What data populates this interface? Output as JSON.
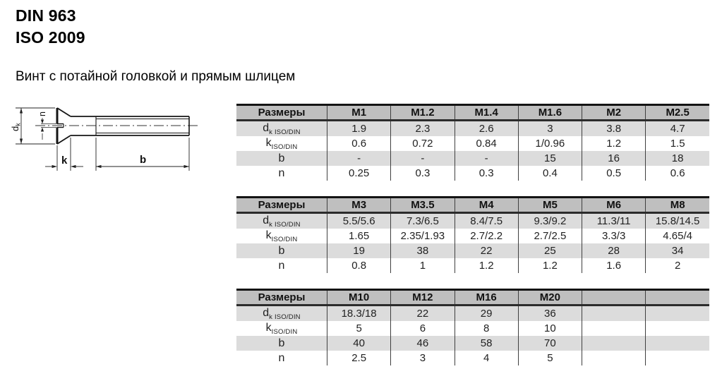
{
  "header": {
    "din": "DIN 963",
    "iso": "ISO 2009",
    "description": "Винт с потайной головкой и прямым шлицем"
  },
  "drawing": {
    "labels": {
      "dk_base": "d",
      "dk_sub": "k",
      "n": "n",
      "k": "k",
      "b": "b"
    }
  },
  "colors": {
    "header_bg": "#bfbfbf",
    "row_alt_bg": "#dcdcdc",
    "table_border": "#141414",
    "grid_line": "#3f3f3f"
  },
  "tables": [
    {
      "corner_label": "Размеры",
      "columns": [
        "M1",
        "M1.2",
        "M1.4",
        "M1.6",
        "M2",
        "M2.5"
      ],
      "rows": [
        {
          "label_base": "d",
          "label_sub": "k ISO/DIN",
          "values": [
            "1.9",
            "2.3",
            "2.6",
            "3",
            "3.8",
            "4.7"
          ]
        },
        {
          "label_base": "k",
          "label_sub": "ISO/DIN",
          "values": [
            "0.6",
            "0.72",
            "0.84",
            "1/0.96",
            "1.2",
            "1.5"
          ]
        },
        {
          "label_base": "b",
          "label_sub": "",
          "values": [
            "-",
            "-",
            "-",
            "15",
            "16",
            "18"
          ]
        },
        {
          "label_base": "n",
          "label_sub": "",
          "values": [
            "0.25",
            "0.3",
            "0.3",
            "0.4",
            "0.5",
            "0.6"
          ]
        }
      ]
    },
    {
      "corner_label": "Размеры",
      "columns": [
        "M3",
        "M3.5",
        "M4",
        "M5",
        "M6",
        "M8"
      ],
      "rows": [
        {
          "label_base": "d",
          "label_sub": "k ISO/DIN",
          "values": [
            "5.5/5.6",
            "7.3/6.5",
            "8.4/7.5",
            "9.3/9.2",
            "11.3/11",
            "15.8/14.5"
          ]
        },
        {
          "label_base": "k",
          "label_sub": "ISO/DIN",
          "values": [
            "1.65",
            "2.35/1.93",
            "2.7/2.2",
            "2.7/2.5",
            "3.3/3",
            "4.65/4"
          ]
        },
        {
          "label_base": "b",
          "label_sub": "",
          "values": [
            "19",
            "38",
            "22",
            "25",
            "28",
            "34"
          ]
        },
        {
          "label_base": "n",
          "label_sub": "",
          "values": [
            "0.8",
            "1",
            "1.2",
            "1.2",
            "1.6",
            "2"
          ]
        }
      ]
    },
    {
      "corner_label": "Размеры",
      "columns": [
        "M10",
        "M12",
        "M16",
        "M20",
        "",
        ""
      ],
      "rows": [
        {
          "label_base": "d",
          "label_sub": "k ISO/DIN",
          "values": [
            "18.3/18",
            "22",
            "29",
            "36",
            "",
            ""
          ]
        },
        {
          "label_base": "k",
          "label_sub": "ISO/DIN",
          "values": [
            "5",
            "6",
            "8",
            "10",
            "",
            ""
          ]
        },
        {
          "label_base": "b",
          "label_sub": "",
          "values": [
            "40",
            "46",
            "58",
            "70",
            "",
            ""
          ]
        },
        {
          "label_base": "n",
          "label_sub": "",
          "values": [
            "2.5",
            "3",
            "4",
            "5",
            "",
            ""
          ]
        }
      ]
    }
  ]
}
